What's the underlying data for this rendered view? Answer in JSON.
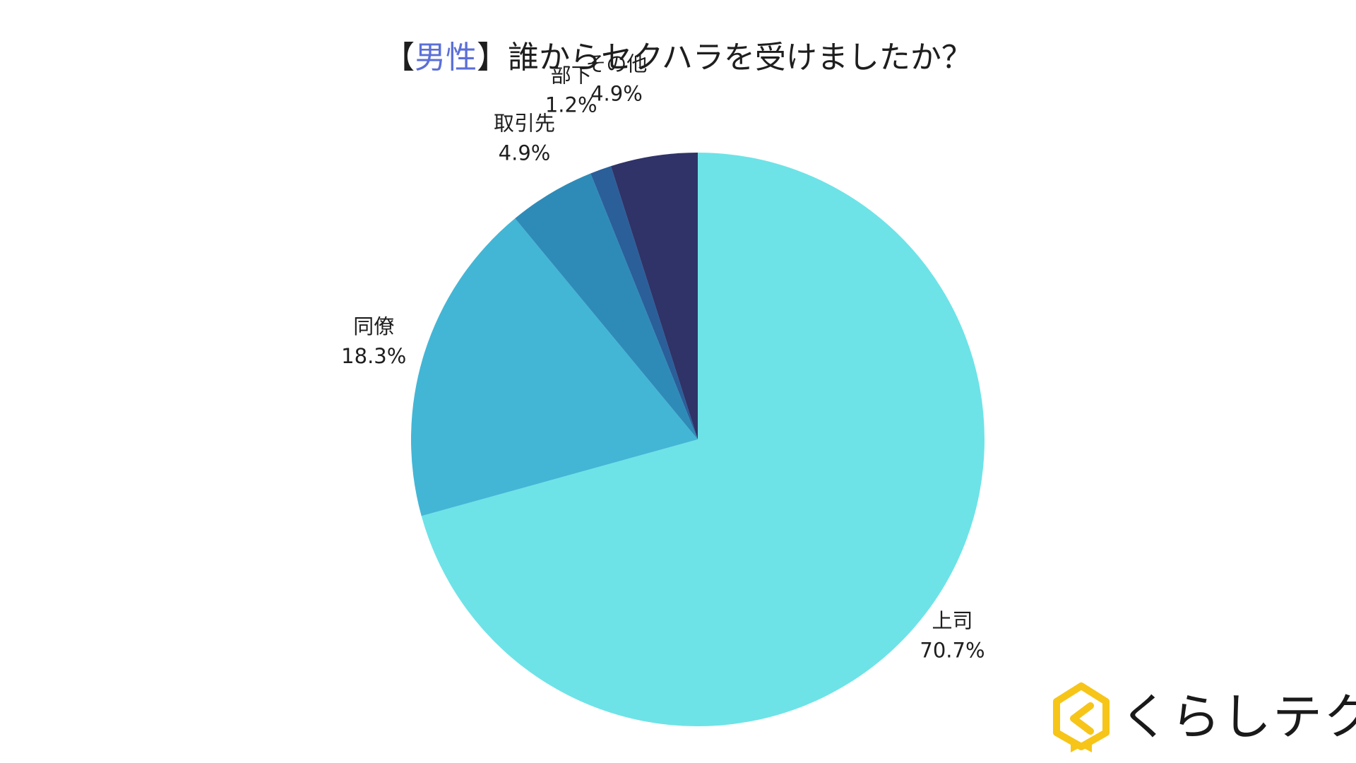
{
  "title": {
    "open_bracket": "【",
    "highlight": "男性",
    "close_bracket": "】",
    "question": "誰からセクハラを受けましたか？"
  },
  "chart_data": {
    "type": "pie",
    "title": "【男性】誰からセクハラを受けましたか？",
    "start_angle": "12 o'clock, clockwise",
    "slices": [
      {
        "label": "上司",
        "value": 70.7,
        "display": "70.7%",
        "color": "#6de3e7"
      },
      {
        "label": "同僚",
        "value": 18.3,
        "display": "18.3%",
        "color": "#43b6d5"
      },
      {
        "label": "取引先",
        "value": 4.9,
        "display": "4.9%",
        "color": "#2e8bb8"
      },
      {
        "label": "部下",
        "value": 1.2,
        "display": "1.2%",
        "color": "#2a5f9a"
      },
      {
        "label": "その他",
        "value": 4.9,
        "display": "4.9%",
        "color": "#2f3368"
      }
    ]
  },
  "brand": {
    "name": "くらしテク",
    "logo_icon": "house-k-icon",
    "logo_color": "#f6c518"
  }
}
